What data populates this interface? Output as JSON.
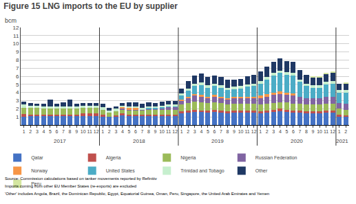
{
  "chart_data": {
    "type": "bar",
    "title": "Figure 15 LNG imports to the EU by supplier",
    "ylabel": "bcm",
    "stacked": true,
    "grid": true,
    "ylim": [
      0,
      12
    ],
    "yticks": [
      1,
      2,
      3,
      4,
      5,
      6,
      7,
      8,
      9,
      10,
      11,
      12
    ],
    "categories": [
      "1",
      "2",
      "3",
      "4",
      "5",
      "6",
      "7",
      "8",
      "9",
      "10",
      "11",
      "12",
      "1",
      "2",
      "3",
      "4",
      "5",
      "6",
      "7",
      "8",
      "9",
      "10",
      "11",
      "12",
      "1",
      "2",
      "3",
      "4",
      "5",
      "6",
      "7",
      "8",
      "9",
      "10",
      "11",
      "12",
      "1",
      "2",
      "3",
      "4",
      "5",
      "6",
      "7",
      "8",
      "9",
      "10",
      "11",
      "12",
      "1",
      "2"
    ],
    "groups": [
      "2017",
      "2017",
      "2017",
      "2017",
      "2017",
      "2017",
      "2017",
      "2017",
      "2017",
      "2017",
      "2017",
      "2017",
      "2018",
      "2018",
      "2018",
      "2018",
      "2018",
      "2018",
      "2018",
      "2018",
      "2018",
      "2018",
      "2018",
      "2018",
      "2019",
      "2019",
      "2019",
      "2019",
      "2019",
      "2019",
      "2019",
      "2019",
      "2019",
      "2019",
      "2019",
      "2019",
      "2020",
      "2020",
      "2020",
      "2020",
      "2020",
      "2020",
      "2020",
      "2020",
      "2020",
      "2020",
      "2020",
      "2020",
      "2021",
      "2021"
    ],
    "notes": [
      "Source: Commission calculations based on tanker movements reported by Refinitiv",
      "Imports coming from other EU Member States (re-exports) are excluded",
      "'Other' includes Angola, Brazil, the Dominican Republic, Egypt, Equatorial Guinea, Oman, Peru, Singapore, the United Arab Emirates and Yemen"
    ],
    "series": [
      {
        "name": "Qatar",
        "color": "#4472c4",
        "values": [
          1.05,
          1.1,
          1.1,
          1.1,
          1.1,
          1.1,
          1.1,
          1.1,
          1.1,
          1.1,
          1.1,
          1.1,
          1.0,
          1.0,
          1.0,
          1.2,
          1.1,
          1.1,
          1.1,
          1.1,
          1.1,
          1.1,
          1.1,
          1.1,
          1.4,
          1.5,
          1.6,
          1.6,
          1.5,
          1.6,
          1.5,
          1.4,
          1.5,
          1.5,
          1.5,
          1.5,
          1.4,
          1.5,
          1.6,
          1.7,
          1.6,
          1.5,
          1.5,
          1.4,
          1.4,
          1.4,
          1.5,
          1.5,
          1.0,
          1.0
        ]
      },
      {
        "name": "Algeria",
        "color": "#c0504d",
        "values": [
          0.3,
          0.2,
          0.2,
          0.2,
          0.2,
          0.2,
          0.2,
          0.2,
          0.2,
          0.3,
          0.3,
          0.3,
          0.3,
          0.0,
          0.2,
          0.2,
          0.2,
          0.2,
          0.2,
          0.2,
          0.2,
          0.2,
          0.2,
          0.2,
          0.3,
          0.3,
          0.3,
          0.2,
          0.3,
          0.3,
          0.3,
          0.3,
          0.3,
          0.3,
          0.3,
          0.3,
          0.3,
          0.3,
          0.3,
          0.3,
          0.3,
          0.3,
          0.3,
          0.3,
          0.3,
          0.3,
          0.3,
          0.3,
          0.3,
          0.2
        ]
      },
      {
        "name": "Nigeria",
        "color": "#9bbb59",
        "values": [
          0.8,
          0.8,
          0.8,
          0.7,
          0.7,
          0.7,
          0.7,
          0.7,
          0.7,
          0.7,
          0.7,
          0.7,
          0.6,
          0.5,
          0.5,
          0.5,
          0.5,
          0.5,
          0.5,
          0.6,
          0.6,
          0.6,
          0.6,
          0.6,
          0.8,
          0.9,
          1.0,
          1.0,
          0.9,
          0.9,
          0.9,
          0.8,
          0.8,
          0.8,
          0.8,
          0.8,
          0.8,
          0.8,
          0.8,
          0.8,
          0.9,
          0.8,
          0.8,
          0.8,
          0.8,
          0.8,
          0.8,
          0.8,
          0.7,
          0.7
        ]
      },
      {
        "name": "Russian Federation",
        "color": "#8064a2",
        "values": [
          0.0,
          0.0,
          0.0,
          0.0,
          0.0,
          0.0,
          0.0,
          0.0,
          0.0,
          0.0,
          0.0,
          0.0,
          0.0,
          0.0,
          0.0,
          0.1,
          0.1,
          0.1,
          0.1,
          0.1,
          0.1,
          0.2,
          0.3,
          0.3,
          0.5,
          0.6,
          0.7,
          0.7,
          0.6,
          0.7,
          0.6,
          0.6,
          0.7,
          0.7,
          0.7,
          0.7,
          0.8,
          0.9,
          1.0,
          1.0,
          0.9,
          1.0,
          0.9,
          0.8,
          0.8,
          0.8,
          0.9,
          0.9,
          0.7,
          0.7
        ]
      },
      {
        "name": "Norway",
        "color": "#f79646",
        "values": [
          0.0,
          0.0,
          0.0,
          0.0,
          0.0,
          0.0,
          0.0,
          0.0,
          0.0,
          0.0,
          0.0,
          0.0,
          0.0,
          0.0,
          0.0,
          0.2,
          0.2,
          0.2,
          0.0,
          0.0,
          0.0,
          0.0,
          0.0,
          0.0,
          0.1,
          0.2,
          0.2,
          0.2,
          0.2,
          0.2,
          0.2,
          0.2,
          0.2,
          0.2,
          0.2,
          0.2,
          0.3,
          0.3,
          0.3,
          0.3,
          0.3,
          0.3,
          0.0,
          0.0,
          0.0,
          0.0,
          0.0,
          0.0,
          0.0,
          0.0
        ]
      },
      {
        "name": "United States",
        "color": "#4bacc6",
        "values": [
          0.0,
          0.0,
          0.0,
          0.0,
          0.0,
          0.0,
          0.0,
          0.0,
          0.0,
          0.0,
          0.0,
          0.0,
          0.0,
          0.0,
          0.0,
          0.0,
          0.0,
          0.0,
          0.0,
          0.1,
          0.1,
          0.1,
          0.1,
          0.1,
          0.5,
          0.7,
          1.0,
          1.2,
          1.1,
          1.1,
          1.1,
          1.0,
          0.9,
          1.0,
          1.2,
          1.3,
          1.5,
          1.8,
          2.1,
          2.3,
          2.2,
          2.2,
          1.8,
          1.5,
          1.3,
          1.3,
          1.5,
          1.6,
          1.3,
          1.4
        ]
      },
      {
        "name": "Trinidad and Tobago",
        "color": "#c6efce",
        "values": [
          0.4,
          0.3,
          0.3,
          0.3,
          0.3,
          0.3,
          0.3,
          0.3,
          0.3,
          0.3,
          0.3,
          0.3,
          0.3,
          0.3,
          0.3,
          0.2,
          0.2,
          0.2,
          0.2,
          0.2,
          0.2,
          0.2,
          0.2,
          0.2,
          0.3,
          0.3,
          0.3,
          0.3,
          0.3,
          0.3,
          0.3,
          0.3,
          0.3,
          0.3,
          0.3,
          0.3,
          0.3,
          0.3,
          0.3,
          0.3,
          0.3,
          0.3,
          0.3,
          0.3,
          0.3,
          0.3,
          0.3,
          0.3,
          0.3,
          0.3
        ]
      },
      {
        "name": "Other",
        "color": "#1f3864",
        "values": [
          0.3,
          0.3,
          0.2,
          0.3,
          0.8,
          0.3,
          0.5,
          0.8,
          0.3,
          0.3,
          0.3,
          0.3,
          0.4,
          0.3,
          0.3,
          0.3,
          0.5,
          0.5,
          0.5,
          0.5,
          0.4,
          0.5,
          0.5,
          0.5,
          0.6,
          0.9,
          1.0,
          1.1,
          1.0,
          1.0,
          1.0,
          1.0,
          0.9,
          0.9,
          1.0,
          1.1,
          1.2,
          1.3,
          1.4,
          1.5,
          1.4,
          1.4,
          1.2,
          1.1,
          1.0,
          1.0,
          1.0,
          1.1,
          0.8,
          0.8
        ]
      },
      {
        "name": "Peru",
        "color": "#d4e6a0",
        "values": [
          0.0,
          0.0,
          0.0,
          0.0,
          0.0,
          0.0,
          0.0,
          0.0,
          0.0,
          0.0,
          0.0,
          0.0,
          0.0,
          0.0,
          0.0,
          0.0,
          0.0,
          0.0,
          0.0,
          0.0,
          0.0,
          0.0,
          0.0,
          0.0,
          0.0,
          0.0,
          0.0,
          0.0,
          0.0,
          0.0,
          0.0,
          0.0,
          0.0,
          0.0,
          0.0,
          0.0,
          0.0,
          0.0,
          0.0,
          0.0,
          0.0,
          0.0,
          0.0,
          0.0,
          0.1,
          0.1,
          0.1,
          0.1,
          0.0,
          0.1
        ]
      }
    ]
  }
}
